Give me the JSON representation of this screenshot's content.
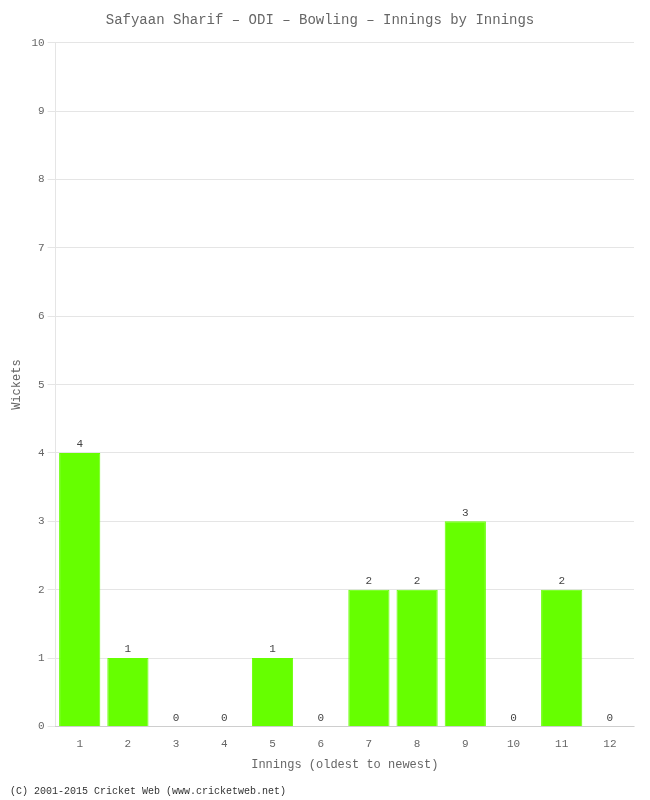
{
  "chart_data": {
    "type": "bar",
    "title": "Safyaan Sharif – ODI – Bowling – Innings by Innings",
    "xlabel": "Innings (oldest to newest)",
    "ylabel": "Wickets",
    "categories": [
      "1",
      "2",
      "3",
      "4",
      "5",
      "6",
      "7",
      "8",
      "9",
      "10",
      "11",
      "12"
    ],
    "values": [
      4,
      1,
      0,
      0,
      1,
      0,
      2,
      2,
      3,
      0,
      2,
      0
    ],
    "color": "#66ff00",
    "ylim": [
      0,
      10
    ],
    "yticks": [
      0,
      1,
      2,
      3,
      4,
      5,
      6,
      7,
      8,
      9,
      10
    ],
    "grid": true,
    "data_labels": true,
    "annotations": [
      "(C) 2001-2015 Cricket Web (www.cricketweb.net)"
    ]
  }
}
